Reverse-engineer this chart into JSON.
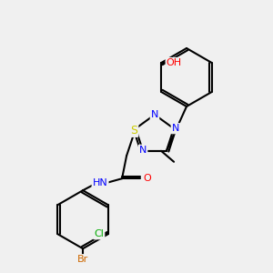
{
  "bg_color": "#f0f0f0",
  "bond_color": "#000000",
  "atom_colors": {
    "N": "#0000ff",
    "O": "#ff0000",
    "S": "#cccc00",
    "Cl": "#00aa00",
    "Br": "#cc6600",
    "C": "#000000",
    "H": "#000000"
  },
  "font_size": 8,
  "bond_width": 1.5
}
